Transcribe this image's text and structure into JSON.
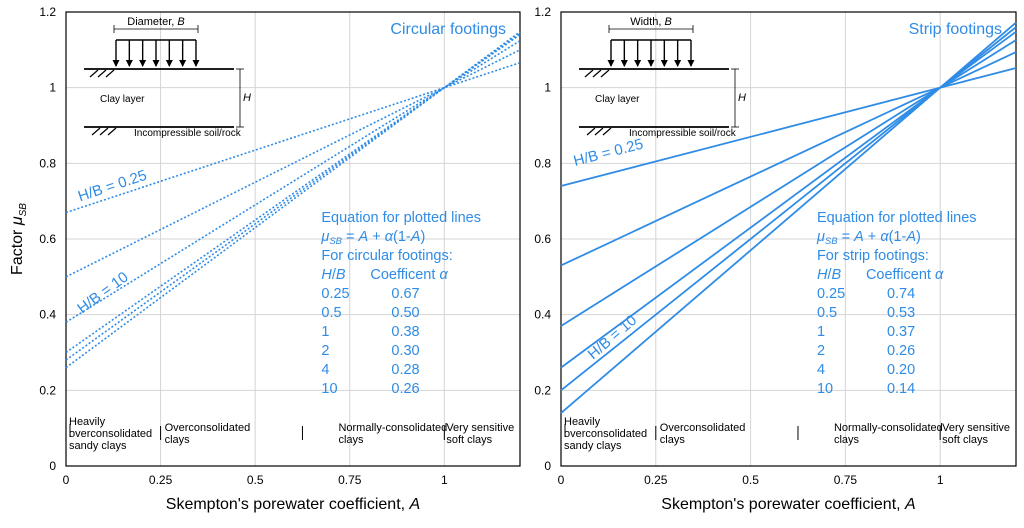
{
  "chart_data": [
    {
      "type": "line",
      "title": "Circular footings",
      "xlabel_prefix": "Skempton's porewater coefficient, ",
      "xlabel_var": "A",
      "ylabel_prefix": "Factor ",
      "ylabel_var": "μ",
      "ylabel_sub": "SB",
      "xlim": [
        0,
        1.2
      ],
      "ylim": [
        0,
        1.2
      ],
      "xticks": [
        "0",
        "0.25",
        "0.5",
        "0.75",
        "1"
      ],
      "yticks": [
        "0",
        "0.2",
        "0.4",
        "0.6",
        "0.8",
        "1",
        "1.2"
      ],
      "line_style": "dotted",
      "series": [
        {
          "hb": "0.25",
          "alpha": "0.67"
        },
        {
          "hb": "0.5",
          "alpha": "0.50"
        },
        {
          "hb": "1",
          "alpha": "0.38"
        },
        {
          "hb": "2",
          "alpha": "0.30"
        },
        {
          "hb": "4",
          "alpha": "0.28"
        },
        {
          "hb": "10",
          "alpha": "0.26"
        }
      ],
      "label_top": "H/B = 0.25",
      "label_bottom": "H/B = 10",
      "equation_heading": "Equation for plotted lines",
      "equation": "μSB = A + α(1-A)",
      "table_heading": "For circular footings:",
      "col1": "H/B",
      "col2": "Coefficent α",
      "regions": [
        "Heavily overconsolidated sandy clays",
        "Overconsolidated clays",
        "Normally-consolidated clays",
        "Very sensitive soft clays"
      ],
      "inset": {
        "dimension": "Diameter, B",
        "layer": "Clay layer",
        "base": "Incompressible soil/rock",
        "thickness": "H"
      },
      "grid": true,
      "color": "#2f8ce6"
    },
    {
      "type": "line",
      "title": "Strip footings",
      "xlabel_prefix": "Skempton's porewater coefficient, ",
      "xlabel_var": "A",
      "xlim": [
        0,
        1.2
      ],
      "ylim": [
        0,
        1.2
      ],
      "xticks": [
        "0",
        "0.25",
        "0.5",
        "0.75",
        "1"
      ],
      "yticks": [
        "0",
        "0.2",
        "0.4",
        "0.6",
        "0.8",
        "1",
        "1.2"
      ],
      "line_style": "solid",
      "series": [
        {
          "hb": "0.25",
          "alpha": "0.74"
        },
        {
          "hb": "0.5",
          "alpha": "0.53"
        },
        {
          "hb": "1",
          "alpha": "0.37"
        },
        {
          "hb": "2",
          "alpha": "0.26"
        },
        {
          "hb": "4",
          "alpha": "0.20"
        },
        {
          "hb": "10",
          "alpha": "0.14"
        }
      ],
      "label_top": "H/B = 0.25",
      "label_bottom": "H/B = 10",
      "equation_heading": "Equation for plotted lines",
      "equation": "μSB = A + α(1-A)",
      "table_heading": "For strip footings:",
      "col1": "H/B",
      "col2": "Coefficent α",
      "regions": [
        "Heavily overconsolidated sandy clays",
        "Overconsolidated clays",
        "Normally-consolidated clays",
        "Very sensitive soft clays"
      ],
      "inset": {
        "dimension": "Width, B",
        "layer": "Clay layer",
        "base": "Incompressible soil/rock",
        "thickness": "H"
      },
      "grid": true,
      "color": "#2f8ce6"
    }
  ]
}
